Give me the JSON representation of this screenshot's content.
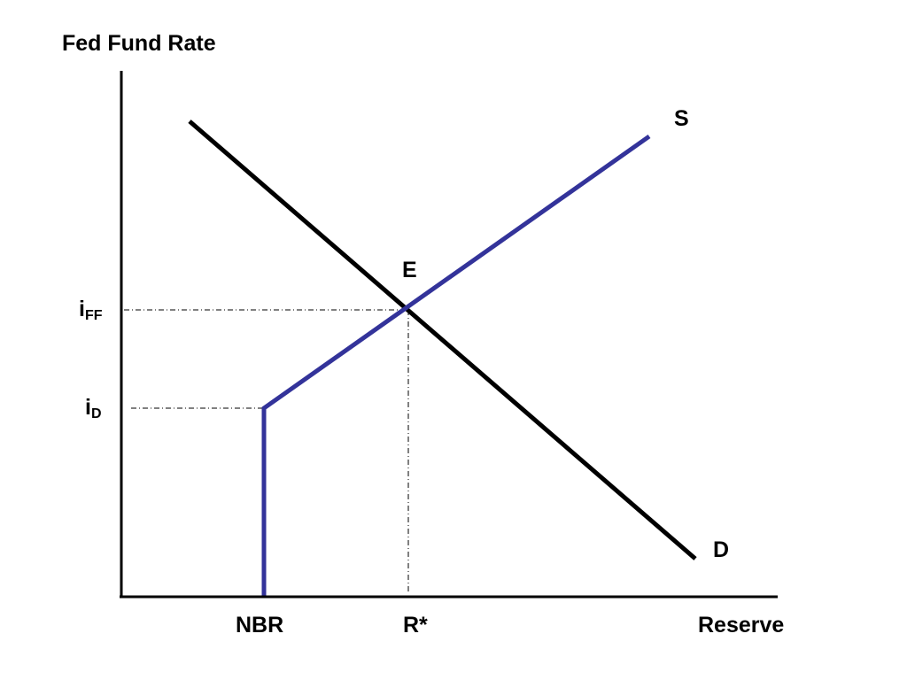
{
  "axes": {
    "y_title": "Fed Fund Rate",
    "x_title": "Reserve"
  },
  "curves": {
    "demand_label": "D",
    "supply_label": "S",
    "equilibrium_label": "E"
  },
  "y_ticks": {
    "iff_base": "i",
    "iff_sub": "FF",
    "id_base": "i",
    "id_sub": "D"
  },
  "x_ticks": {
    "nbr": "NBR",
    "rstar": "R*"
  },
  "colors": {
    "axis": "#000000",
    "demand": "#000000",
    "supply": "#33339a",
    "guides": "#000000"
  }
}
